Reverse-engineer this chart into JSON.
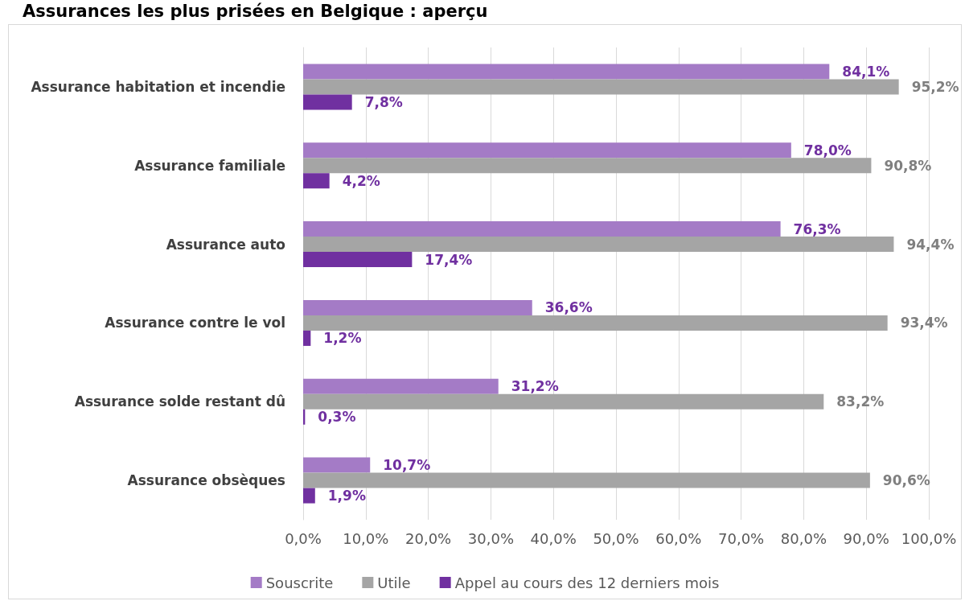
{
  "chart_data": {
    "type": "bar",
    "orientation": "horizontal",
    "title": "Assurances les plus prisées en Belgique : aperçu",
    "categories": [
      "Assurance habitation et incendie",
      "Assurance familiale",
      "Assurance auto",
      "Assurance contre le vol",
      "Assurance solde restant dû",
      "Assurance obsèques"
    ],
    "series": [
      {
        "name": "Souscrite",
        "color": "#a47bc6",
        "values": [
          84.1,
          78.0,
          76.3,
          36.6,
          31.2,
          10.7
        ],
        "value_labels": [
          "84,1%",
          "78,0%",
          "76,3%",
          "36,6%",
          "31,2%",
          "10,7%"
        ]
      },
      {
        "name": "Utile",
        "color": "#a5a5a5",
        "values": [
          95.2,
          90.8,
          94.4,
          93.4,
          83.2,
          90.6
        ],
        "value_labels": [
          "95,2%",
          "90,8%",
          "94,4%",
          "93,4%",
          "83,2%",
          "90,6%"
        ]
      },
      {
        "name": "Appel au cours des 12 derniers mois",
        "color": "#7030a0",
        "values": [
          7.8,
          4.2,
          17.4,
          1.2,
          0.3,
          1.9
        ],
        "value_labels": [
          "7,8%",
          "4,2%",
          "17,4%",
          "1,2%",
          "0,3%",
          "1,9%"
        ]
      }
    ],
    "xlim": [
      0,
      100
    ],
    "xticks": [
      {
        "value": 0,
        "label": "0,0%"
      },
      {
        "value": 10,
        "label": "10,0%"
      },
      {
        "value": 20,
        "label": "20,0%"
      },
      {
        "value": 30,
        "label": "30,0%"
      },
      {
        "value": 40,
        "label": "40,0%"
      },
      {
        "value": 50,
        "label": "50,0%"
      },
      {
        "value": 60,
        "label": "60,0%"
      },
      {
        "value": 70,
        "label": "70,0%"
      },
      {
        "value": 80,
        "label": "80,0%"
      },
      {
        "value": 90,
        "label": "90,0%"
      },
      {
        "value": 100,
        "label": "100,0%"
      }
    ],
    "grid": "x",
    "legend": "bottom"
  }
}
